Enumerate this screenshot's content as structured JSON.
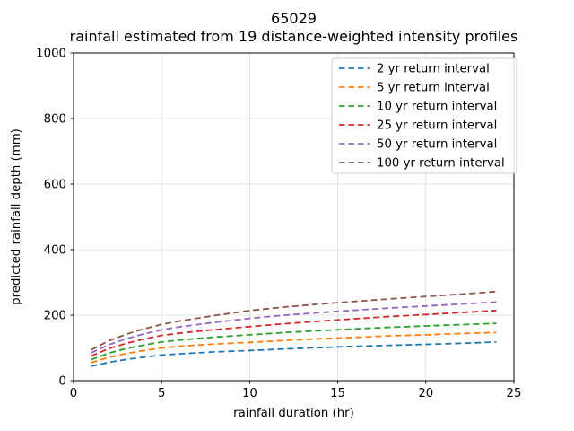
{
  "figure": {
    "title_line1": "65029",
    "title_line2": "rainfall estimated from 19 distance-weighted intensity profiles"
  },
  "axes": {
    "xlabel": "rainfall duration (hr)",
    "ylabel": "predicted rainfall depth (mm)",
    "xlim": [
      0,
      25
    ],
    "ylim": [
      0,
      1000
    ],
    "x_ticks": [
      0,
      5,
      10,
      15,
      20,
      25
    ],
    "y_ticks": [
      0,
      200,
      400,
      600,
      800,
      1000
    ]
  },
  "colors": {
    "background": "#ffffff",
    "grid": "#dcdcdc",
    "spine": "#000000",
    "legend_border": "#cccccc"
  },
  "chart_data": {
    "type": "line",
    "title": "65029",
    "subtitle": "rainfall estimated from 19 distance-weighted intensity profiles",
    "xlabel": "rainfall duration (hr)",
    "ylabel": "predicted rainfall depth (mm)",
    "xlim": [
      0,
      25
    ],
    "ylim": [
      0,
      1000
    ],
    "grid": true,
    "line_style": "dashed",
    "legend_position": "upper right",
    "x": [
      1,
      2,
      3,
      4,
      5,
      6,
      8,
      10,
      12,
      14,
      16,
      18,
      20,
      22,
      24
    ],
    "series": [
      {
        "name": "2 yr return interval",
        "color": "#1f77b4",
        "values": [
          44,
          56,
          65,
          72,
          78,
          82,
          88,
          92,
          97,
          101,
          105,
          108,
          111,
          114,
          118
        ]
      },
      {
        "name": "5 yr return interval",
        "color": "#ff7f0e",
        "values": [
          55,
          71,
          83,
          92,
          100,
          105,
          112,
          117,
          123,
          128,
          132,
          137,
          140,
          144,
          147
        ]
      },
      {
        "name": "10 yr return interval",
        "color": "#2ca02c",
        "values": [
          64,
          84,
          98,
          109,
          118,
          124,
          133,
          140,
          147,
          153,
          158,
          163,
          167,
          171,
          175
        ]
      },
      {
        "name": "25 yr return interval",
        "color": "#d62728",
        "values": [
          75,
          98,
          114,
          127,
          138,
          145,
          156,
          165,
          174,
          182,
          189,
          196,
          202,
          208,
          214
        ]
      },
      {
        "name": "50 yr return interval",
        "color": "#9467bd",
        "values": [
          85,
          110,
          128,
          143,
          155,
          164,
          178,
          190,
          200,
          208,
          215,
          222,
          228,
          234,
          240
        ]
      },
      {
        "name": "100 yr return interval",
        "color": "#8c564b",
        "values": [
          94,
          122,
          142,
          158,
          172,
          182,
          199,
          214,
          225,
          234,
          242,
          250,
          257,
          264,
          272
        ]
      }
    ]
  }
}
